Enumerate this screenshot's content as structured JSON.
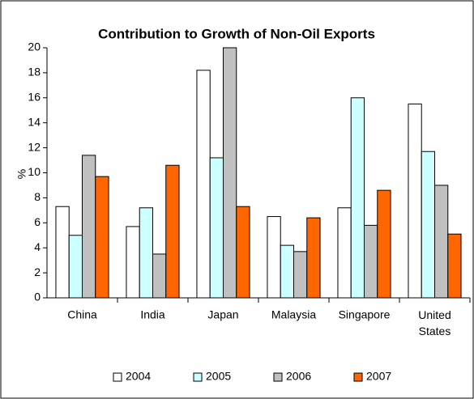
{
  "chart_data": {
    "type": "bar",
    "title": "Contribution to Growth of Non-Oil Exports",
    "y_label": "%",
    "categories": [
      "China",
      "India",
      "Japan",
      "Malaysia",
      "Singapore",
      "United States"
    ],
    "series": [
      {
        "name": "2004",
        "color": "#ffffff",
        "values": [
          7.3,
          5.7,
          18.2,
          6.5,
          7.2,
          15.5
        ]
      },
      {
        "name": "2005",
        "color": "#ccffff",
        "values": [
          5.0,
          7.2,
          11.2,
          4.2,
          16.0,
          11.7
        ]
      },
      {
        "name": "2006",
        "color": "#c0c0c0",
        "values": [
          11.4,
          3.5,
          20.0,
          3.7,
          5.8,
          9.0
        ]
      },
      {
        "name": "2007",
        "color": "#ff6600",
        "values": [
          9.7,
          10.6,
          7.3,
          6.4,
          8.6,
          5.1
        ]
      }
    ],
    "ylim": [
      0,
      20
    ],
    "yticks": [
      0,
      2,
      4,
      6,
      8,
      10,
      12,
      14,
      16,
      18,
      20
    ],
    "grid": false,
    "legend": "bottom"
  }
}
